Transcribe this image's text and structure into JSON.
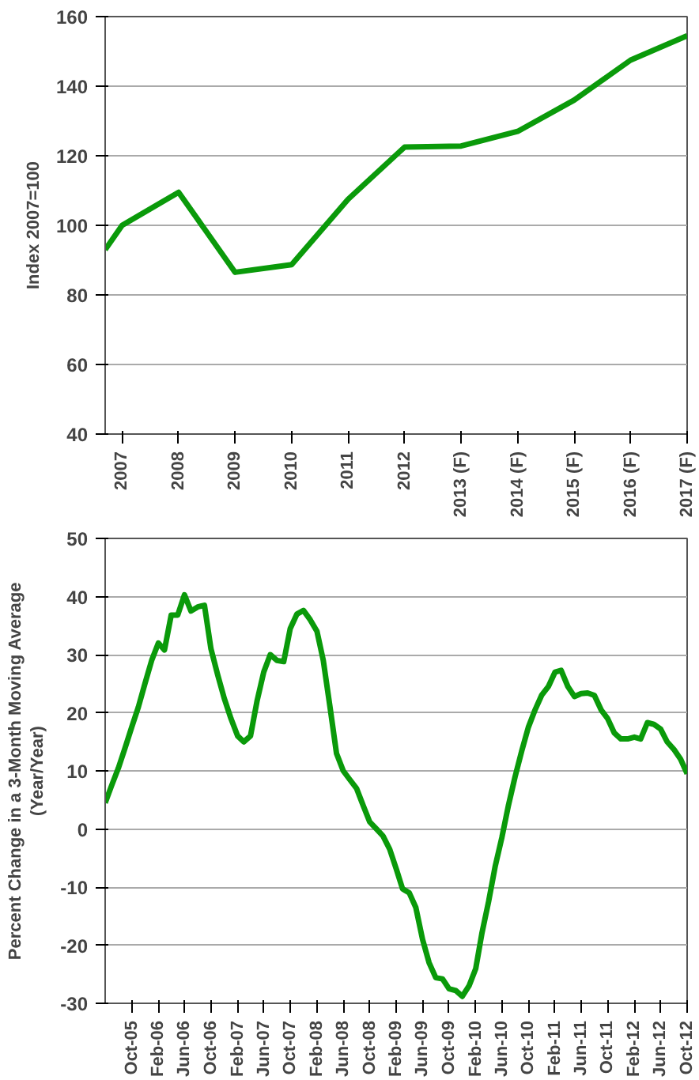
{
  "chart_data": [
    {
      "type": "line",
      "ylabel": "Index 2007=100",
      "x": [
        2006.7,
        2007,
        2008,
        2009,
        2010,
        2011,
        2012,
        2013,
        2014,
        2015,
        2016,
        2017
      ],
      "series": [
        {
          "color": "#0a9a0a",
          "values": [
            93,
            100,
            109.5,
            86.5,
            88.7,
            107.5,
            122.5,
            122.8,
            127,
            136,
            147.5,
            154.5
          ]
        }
      ],
      "xlim": [
        2006.7,
        2017
      ],
      "xticks": [
        2007,
        2008,
        2009,
        2010,
        2011,
        2012,
        {
          "value": 2013,
          "label": "2013 (F)"
        },
        {
          "value": 2014,
          "label": "2014 (F)"
        },
        {
          "value": 2015,
          "label": "2015 (F)"
        },
        {
          "value": 2016,
          "label": "2016 (F)"
        },
        {
          "value": 2017,
          "label": "2017 (F)"
        }
      ],
      "ylim": [
        40,
        160
      ],
      "yticks": [
        40,
        60,
        80,
        100,
        120,
        140,
        160
      ],
      "grid": "y"
    },
    {
      "type": "line",
      "ylabel": "Percent Change in a 3-Month Moving Average\n(Year/Year)",
      "x": [
        "2005-06",
        "2005-07",
        "2005-08",
        "2005-09",
        "2005-10",
        "2005-11",
        "2005-12",
        "2006-01",
        "2006-02",
        "2006-03",
        "2006-04",
        "2006-05",
        "2006-06",
        "2006-07",
        "2006-08",
        "2006-09",
        "2006-10",
        "2006-11",
        "2006-12",
        "2007-01",
        "2007-02",
        "2007-03",
        "2007-04",
        "2007-05",
        "2007-06",
        "2007-07",
        "2007-08",
        "2007-09",
        "2007-10",
        "2007-11",
        "2007-12",
        "2008-01",
        "2008-02",
        "2008-03",
        "2008-04",
        "2008-05",
        "2008-06",
        "2008-07",
        "2008-08",
        "2008-09",
        "2008-10",
        "2008-11",
        "2008-12",
        "2009-01",
        "2009-02",
        "2009-03",
        "2009-04",
        "2009-05",
        "2009-06",
        "2009-07",
        "2009-08",
        "2009-09",
        "2009-10",
        "2009-11",
        "2009-12",
        "2010-01",
        "2010-02",
        "2010-03",
        "2010-04",
        "2010-05",
        "2010-06",
        "2010-07",
        "2010-08",
        "2010-09",
        "2010-10",
        "2010-11",
        "2010-12",
        "2011-01",
        "2011-02",
        "2011-03",
        "2011-04",
        "2011-05",
        "2011-06",
        "2011-07",
        "2011-08",
        "2011-09",
        "2011-10",
        "2011-11",
        "2011-12",
        "2012-01",
        "2012-02",
        "2012-03",
        "2012-04",
        "2012-05",
        "2012-06",
        "2012-07",
        "2012-08",
        "2012-09",
        "2012-10"
      ],
      "series": [
        {
          "color": "#0a9a0a",
          "values": [
            4.5,
            7.5,
            10.5,
            14,
            17.5,
            21,
            25,
            29,
            32,
            30.8,
            36.8,
            36.8,
            40.3,
            37.5,
            38.2,
            38.5,
            31,
            26.5,
            22.5,
            19,
            16,
            15,
            16,
            22,
            27,
            30,
            29,
            28.8,
            34.5,
            37,
            37.6,
            36,
            34,
            29,
            21,
            13,
            10,
            8.5,
            7,
            4,
            1.2,
            0,
            -1.2,
            -3.5,
            -7,
            -10.3,
            -11,
            -13.5,
            -19,
            -23,
            -25.6,
            -25.8,
            -27.5,
            -27.8,
            -28.8,
            -27,
            -24,
            -18,
            -12.5,
            -6.5,
            -1.5,
            4,
            9,
            13.5,
            17.5,
            20.5,
            23,
            24.5,
            27,
            27.3,
            24.5,
            22.8,
            23.3,
            23.4,
            23,
            20.5,
            19,
            16.5,
            15.5,
            15.5,
            15.8,
            15.5,
            18.3,
            18,
            17.2,
            15,
            13.7,
            12,
            9.5
          ]
        }
      ],
      "xlim": [
        "2005-06",
        "2012-10"
      ],
      "xticks": [
        {
          "value": "2005-10",
          "label": "Oct-05"
        },
        {
          "value": "2006-02",
          "label": "Feb-06"
        },
        {
          "value": "2006-06",
          "label": "Jun-06"
        },
        {
          "value": "2006-10",
          "label": "Oct-06"
        },
        {
          "value": "2007-02",
          "label": "Feb-07"
        },
        {
          "value": "2007-06",
          "label": "Jun-07"
        },
        {
          "value": "2007-10",
          "label": "Oct-07"
        },
        {
          "value": "2008-02",
          "label": "Feb-08"
        },
        {
          "value": "2008-06",
          "label": "Jun-08"
        },
        {
          "value": "2008-10",
          "label": "Oct-08"
        },
        {
          "value": "2009-02",
          "label": "Feb-09"
        },
        {
          "value": "2009-06",
          "label": "Jun-09"
        },
        {
          "value": "2009-10",
          "label": "Oct-09"
        },
        {
          "value": "2010-02",
          "label": "Feb-10"
        },
        {
          "value": "2010-06",
          "label": "Jun-10"
        },
        {
          "value": "2010-10",
          "label": "Oct-10"
        },
        {
          "value": "2011-02",
          "label": "Feb-11"
        },
        {
          "value": "2011-06",
          "label": "Jun-11"
        },
        {
          "value": "2011-10",
          "label": "Oct-11"
        },
        {
          "value": "2012-02",
          "label": "Feb-12"
        },
        {
          "value": "2012-06",
          "label": "Jun-12"
        },
        {
          "value": "2012-10",
          "label": "Oct-12"
        }
      ],
      "ylim": [
        -30,
        50
      ],
      "yticks": [
        -30,
        -20,
        -10,
        0,
        10,
        20,
        30,
        40,
        50
      ],
      "grid": "y"
    }
  ]
}
